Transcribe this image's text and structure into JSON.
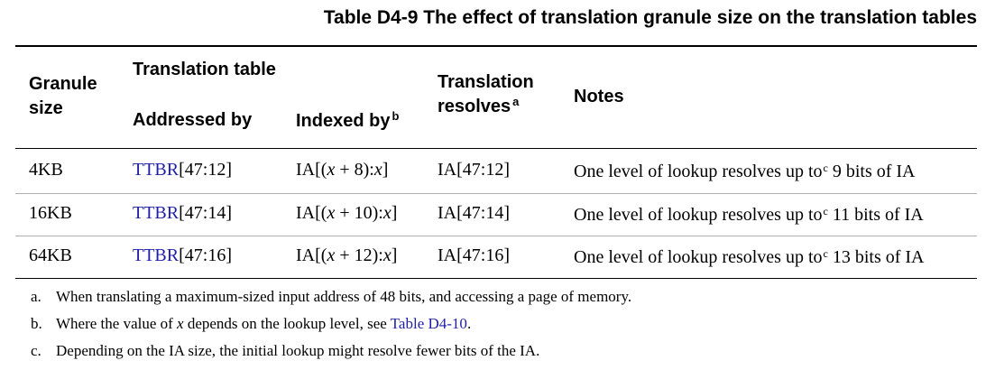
{
  "title": "Table D4-9 The effect of translation granule size on the translation tables",
  "headers": {
    "granule_size_line1": "Granule",
    "granule_size_line2": "size",
    "translation_table": "Translation table",
    "addressed_by": "Addressed by",
    "indexed_by": "Indexed by",
    "indexed_by_note": "b",
    "resolves_line1": "Translation",
    "resolves_line2": "resolves",
    "resolves_note": "a",
    "notes": "Notes"
  },
  "rows": [
    {
      "granule": "4KB",
      "addr_link": "TTBR",
      "addr_bits": "[47:12]",
      "idx_pre": "IA[(",
      "idx_var": "x",
      "idx_mid": " + 8):",
      "idx_var2": "x",
      "idx_post": "]",
      "resolves": "IA[47:12]",
      "note_pre": "One level of lookup resolves up to",
      "note_sup": "c",
      "note_post": " 9 bits of IA"
    },
    {
      "granule": "16KB",
      "addr_link": "TTBR",
      "addr_bits": "[47:14]",
      "idx_pre": "IA[(",
      "idx_var": "x",
      "idx_mid": " + 10):",
      "idx_var2": "x",
      "idx_post": "]",
      "resolves": "IA[47:14]",
      "note_pre": "One level of lookup resolves up to",
      "note_sup": "c",
      "note_post": " 11 bits of IA"
    },
    {
      "granule": "64KB",
      "addr_link": "TTBR",
      "addr_bits": "[47:16]",
      "idx_pre": "IA[(",
      "idx_var": "x",
      "idx_mid": " + 12):",
      "idx_var2": "x",
      "idx_post": "]",
      "resolves": "IA[47:16]",
      "note_pre": "One level of lookup resolves up to",
      "note_sup": "c",
      "note_post": " 13 bits of IA"
    }
  ],
  "footnotes": {
    "a_label": "a.",
    "a_text": "When translating a maximum-sized input address of 48 bits, and accessing a page of memory.",
    "b_label": "b.",
    "b_pre": "Where the value of ",
    "b_var": "x",
    "b_mid": " depends on the lookup level, see ",
    "b_link": "Table D4-10",
    "b_post": ".",
    "c_label": "c.",
    "c_text": "Depending on the IA size, the initial lookup might resolve fewer bits of the IA."
  },
  "colors": {
    "link": "#1f1fa8",
    "rule": "#000000",
    "row_separator": "#b0b0b0"
  }
}
